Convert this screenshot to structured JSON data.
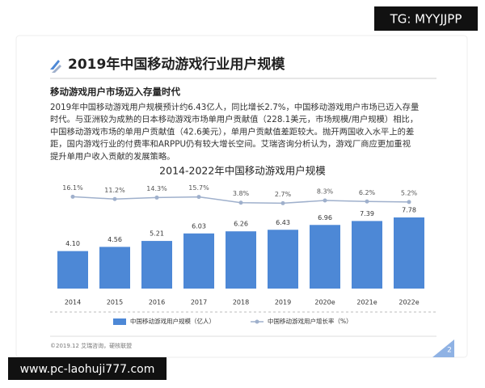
{
  "watermark_top": "TG: MYYJJPP",
  "watermark_bottom": "www.pc-laohuji777.com",
  "header": {
    "title": "2019年中国移动游戏行业用户规模"
  },
  "section": {
    "subtitle": "移动游戏用户市场迈入存量时代",
    "lines": [
      "2019年中国移动游戏用户规模预计约6.43亿人，同比增长2.7%，中国移动游戏用户市场已迈入存量",
      "时代。与亚洲较为成熟的日本移动游戏市场单用户贡献值（228.1美元，市场规模/用户规模）相比，",
      "中国移动游戏市场的单用户贡献值（42.6美元），单用户贡献值差距较大。抛开两国收入水平上的差",
      "距，国内游戏行业的付费率和ARPPU仍有较大增长空间。艾瑞咨询分析认为，游戏厂商应更加重视",
      "提升单用户收入贡献的发展策略。"
    ]
  },
  "chart_data": {
    "type": "bar",
    "title": "2014-2022年中国移动游戏用户规模",
    "categories": [
      "2014",
      "2015",
      "2016",
      "2017",
      "2018",
      "2019",
      "2020e",
      "2021e",
      "2022e"
    ],
    "series": [
      {
        "name": "中国移动游戏用户规模（亿人）",
        "color": "#4d88d6",
        "values": [
          4.1,
          4.56,
          5.21,
          6.03,
          6.26,
          6.43,
          6.96,
          7.39,
          7.78
        ],
        "value_labels": [
          "4.10",
          "4.56",
          "5.21",
          "6.03",
          "6.26",
          "6.43",
          "6.96",
          "7.39",
          "7.78"
        ]
      },
      {
        "name": "中国移动游戏用户增长率（%）",
        "color": "#9fb0cc",
        "type": "line",
        "values": [
          16.1,
          11.2,
          14.3,
          15.7,
          3.8,
          2.7,
          8.3,
          6.2,
          5.2
        ],
        "value_labels": [
          "16.1%",
          "11.2%",
          "14.3%",
          "15.7%",
          "3.8%",
          "2.7%",
          "8.3%",
          "6.2%",
          "5.2%"
        ]
      }
    ]
  },
  "footer": {
    "source": "©2019.12 艾瑞咨询，硬核联盟",
    "page": "2"
  }
}
